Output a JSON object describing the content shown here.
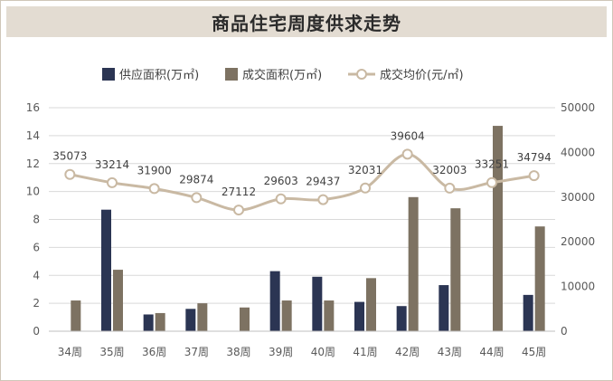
{
  "chart_data": {
    "type": "bar",
    "title": "商品住宅周度供求走势",
    "categories": [
      "34周",
      "35周",
      "36周",
      "37周",
      "38周",
      "39周",
      "40周",
      "41周",
      "42周",
      "43周",
      "44周",
      "45周"
    ],
    "series": [
      {
        "name": "供应面积(万㎡)",
        "type": "bar",
        "axis": "left",
        "color": "#2b3553",
        "values": [
          0,
          8.7,
          1.2,
          1.6,
          0,
          4.3,
          3.9,
          2.1,
          1.8,
          3.3,
          0,
          2.6
        ]
      },
      {
        "name": "成交面积(万㎡)",
        "type": "bar",
        "axis": "left",
        "color": "#7d7262",
        "values": [
          2.2,
          4.4,
          1.3,
          2.0,
          1.7,
          2.2,
          2.2,
          3.8,
          9.6,
          8.8,
          14.7,
          7.5
        ]
      },
      {
        "name": "成交均价(元/㎡)",
        "type": "line",
        "axis": "right",
        "color": "#c9b9a3",
        "values": [
          35073,
          33214,
          31900,
          29874,
          27112,
          29603,
          29437,
          32031,
          39604,
          32003,
          33251,
          34794
        ]
      }
    ],
    "ylim_left": [
      0,
      16
    ],
    "yticks_left": [
      "0",
      "2",
      "4",
      "6",
      "8",
      "10",
      "12",
      "14",
      "16"
    ],
    "ylim_right": [
      0,
      50000
    ],
    "yticks_right": [
      "0",
      "10000",
      "20000",
      "30000",
      "40000",
      "50000"
    ],
    "line_labels": [
      "35073",
      "33214",
      "31900",
      "29874",
      "27112",
      "29603",
      "29437",
      "32031",
      "39604",
      "32003",
      "33251",
      "34794"
    ],
    "legend_position": "top",
    "grid": "horizontal"
  },
  "colors": {
    "title_bg": "#e3dcd2",
    "supply": "#2b3553",
    "deal": "#7d7262",
    "price": "#c9b9a3"
  }
}
